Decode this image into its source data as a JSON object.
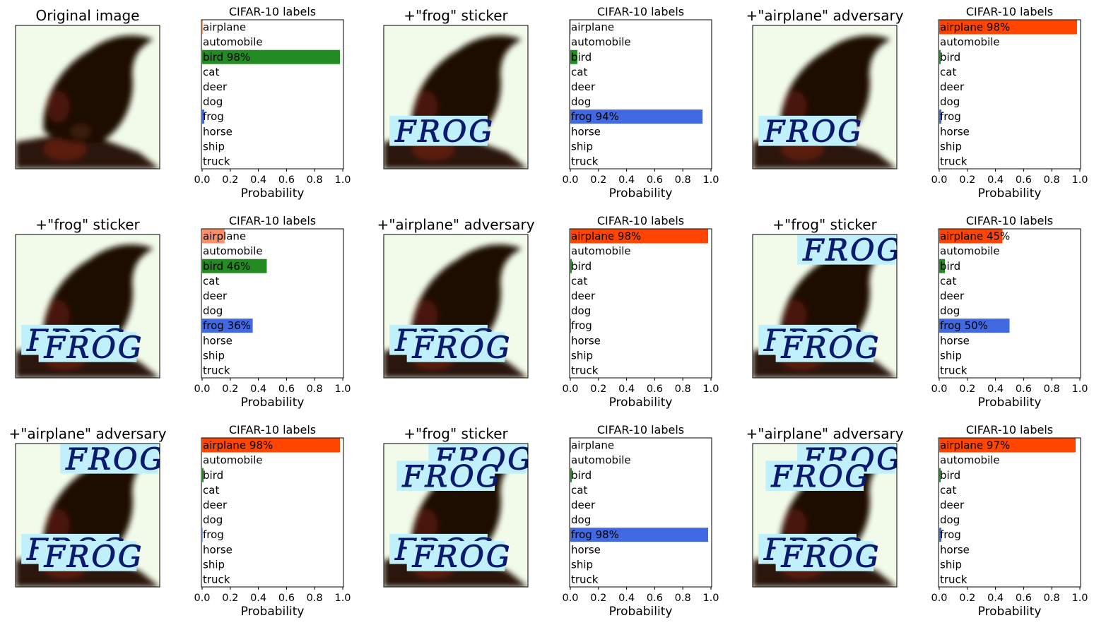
{
  "colors": {
    "bird": "#228b22",
    "frog": "#4169e1",
    "airplane": "#ff4500",
    "photo_bg": "#f2fbe9",
    "bird_dark": "#1a0805",
    "sticker_bg": "#bff0fb",
    "sticker_ink": "#0a1a6e"
  },
  "sticker_text": "FROG",
  "chart_data": [
    {
      "type": "bar",
      "image_title": "Original image",
      "title": "CIFAR-10 labels",
      "xlabel": "Probability",
      "xlim": [
        0,
        1
      ],
      "xticks": [
        "0.0",
        "0.2",
        "0.4",
        "0.6",
        "0.8",
        "1.0"
      ],
      "categories": [
        "truck",
        "ship",
        "horse",
        "frog",
        "dog",
        "deer",
        "cat",
        "bird",
        "automobile",
        "airplane"
      ],
      "values": [
        0.0,
        0.0,
        0.0,
        0.015,
        0.0,
        0.0,
        0.0,
        0.98,
        0.0,
        0.003
      ],
      "bar_labels": [
        "truck",
        "ship",
        "horse",
        "frog",
        "dog",
        "deer",
        "cat",
        "bird 98%",
        "automobile",
        "airplane"
      ],
      "stickers": []
    },
    {
      "type": "bar",
      "image_title": "+\"frog\" sticker",
      "title": "CIFAR-10 labels",
      "xlabel": "Probability",
      "xlim": [
        0,
        1
      ],
      "xticks": [
        "0.0",
        "0.2",
        "0.4",
        "0.6",
        "0.8",
        "1.0"
      ],
      "categories": [
        "truck",
        "ship",
        "horse",
        "frog",
        "dog",
        "deer",
        "cat",
        "bird",
        "automobile",
        "airplane"
      ],
      "values": [
        0.0,
        0.0,
        0.0,
        0.94,
        0.0,
        0.0,
        0.0,
        0.05,
        0.0,
        0.003
      ],
      "bar_labels": [
        "truck",
        "ship",
        "horse",
        "frog 94%",
        "dog",
        "deer",
        "cat",
        "bird",
        "automobile",
        "airplane"
      ],
      "stickers": [
        [
          0.04,
          0.63
        ]
      ]
    },
    {
      "type": "bar",
      "image_title": "+\"airplane\" adversary",
      "title": "CIFAR-10 labels",
      "xlabel": "Probability",
      "xlim": [
        0,
        1
      ],
      "xticks": [
        "0.0",
        "0.2",
        "0.4",
        "0.6",
        "0.8",
        "1.0"
      ],
      "categories": [
        "truck",
        "ship",
        "horse",
        "frog",
        "dog",
        "deer",
        "cat",
        "bird",
        "automobile",
        "airplane"
      ],
      "values": [
        0.0,
        0.0,
        0.0,
        0.015,
        0.0,
        0.0,
        0.0,
        0.01,
        0.0,
        0.98
      ],
      "bar_labels": [
        "truck",
        "ship",
        "horse",
        "frog",
        "dog",
        "deer",
        "cat",
        "bird",
        "automobile",
        "airplane 98%"
      ],
      "stickers": [
        [
          0.04,
          0.63
        ]
      ]
    },
    {
      "type": "bar",
      "image_title": "+\"frog\" sticker",
      "title": "CIFAR-10 labels",
      "xlabel": "Probability",
      "xlim": [
        0,
        1
      ],
      "xticks": [
        "0.0",
        "0.2",
        "0.4",
        "0.6",
        "0.8",
        "1.0"
      ],
      "categories": [
        "truck",
        "ship",
        "horse",
        "frog",
        "dog",
        "deer",
        "cat",
        "bird",
        "automobile",
        "airplane"
      ],
      "values": [
        0.0,
        0.0,
        0.0,
        0.36,
        0.0,
        0.0,
        0.0,
        0.46,
        0.0,
        0.16
      ],
      "bar_labels": [
        "truck",
        "ship",
        "horse",
        "frog 36%",
        "dog",
        "deer",
        "cat",
        "bird 46%",
        "automobile",
        "airplane"
      ],
      "stickers": [
        [
          0.04,
          0.63
        ],
        [
          0.16,
          0.68
        ]
      ]
    },
    {
      "type": "bar",
      "image_title": "+\"airplane\" adversary",
      "title": "CIFAR-10 labels",
      "xlabel": "Probability",
      "xlim": [
        0,
        1
      ],
      "xticks": [
        "0.0",
        "0.2",
        "0.4",
        "0.6",
        "0.8",
        "1.0"
      ],
      "categories": [
        "truck",
        "ship",
        "horse",
        "frog",
        "dog",
        "deer",
        "cat",
        "bird",
        "automobile",
        "airplane"
      ],
      "values": [
        0.0,
        0.0,
        0.0,
        0.005,
        0.0,
        0.0,
        0.0,
        0.01,
        0.0,
        0.98
      ],
      "bar_labels": [
        "truck",
        "ship",
        "horse",
        "frog",
        "dog",
        "deer",
        "cat",
        "bird",
        "automobile",
        "airplane 98%"
      ],
      "stickers": [
        [
          0.04,
          0.63
        ],
        [
          0.16,
          0.68
        ]
      ]
    },
    {
      "type": "bar",
      "image_title": "+\"frog\" sticker",
      "title": "CIFAR-10 labels",
      "xlabel": "Probability",
      "xlim": [
        0,
        1
      ],
      "xticks": [
        "0.0",
        "0.2",
        "0.4",
        "0.6",
        "0.8",
        "1.0"
      ],
      "categories": [
        "truck",
        "ship",
        "horse",
        "frog",
        "dog",
        "deer",
        "cat",
        "bird",
        "automobile",
        "airplane"
      ],
      "values": [
        0.0,
        0.0,
        0.0,
        0.5,
        0.0,
        0.0,
        0.0,
        0.04,
        0.0,
        0.45
      ],
      "bar_labels": [
        "truck",
        "ship",
        "horse",
        "frog 50%",
        "dog",
        "deer",
        "cat",
        "bird",
        "automobile",
        "airplane 45%"
      ],
      "stickers": [
        [
          0.04,
          0.63
        ],
        [
          0.16,
          0.68
        ],
        [
          0.31,
          0.0
        ]
      ]
    },
    {
      "type": "bar",
      "image_title": "+\"airplane\" adversary",
      "title": "CIFAR-10 labels",
      "xlabel": "Probability",
      "xlim": [
        0,
        1
      ],
      "xticks": [
        "0.0",
        "0.2",
        "0.4",
        "0.6",
        "0.8",
        "1.0"
      ],
      "categories": [
        "truck",
        "ship",
        "horse",
        "frog",
        "dog",
        "deer",
        "cat",
        "bird",
        "automobile",
        "airplane"
      ],
      "values": [
        0.0,
        0.0,
        0.0,
        0.003,
        0.0,
        0.0,
        0.0,
        0.01,
        0.0,
        0.98
      ],
      "bar_labels": [
        "truck",
        "ship",
        "horse",
        "frog",
        "dog",
        "deer",
        "cat",
        "bird",
        "automobile",
        "airplane 98%"
      ],
      "stickers": [
        [
          0.04,
          0.63
        ],
        [
          0.16,
          0.68
        ],
        [
          0.31,
          0.0
        ]
      ]
    },
    {
      "type": "bar",
      "image_title": "+\"frog\" sticker",
      "title": "CIFAR-10 labels",
      "xlabel": "Probability",
      "xlim": [
        0,
        1
      ],
      "xticks": [
        "0.0",
        "0.2",
        "0.4",
        "0.6",
        "0.8",
        "1.0"
      ],
      "categories": [
        "truck",
        "ship",
        "horse",
        "frog",
        "dog",
        "deer",
        "cat",
        "bird",
        "automobile",
        "airplane"
      ],
      "values": [
        0.0,
        0.0,
        0.0,
        0.98,
        0.0,
        0.0,
        0.0,
        0.01,
        0.0,
        0.005
      ],
      "bar_labels": [
        "truck",
        "ship",
        "horse",
        "frog 98%",
        "dog",
        "deer",
        "cat",
        "bird",
        "automobile",
        "airplane"
      ],
      "stickers": [
        [
          0.04,
          0.63
        ],
        [
          0.16,
          0.68
        ],
        [
          0.31,
          0.0
        ],
        [
          0.09,
          0.12
        ]
      ]
    },
    {
      "type": "bar",
      "image_title": "+\"airplane\" adversary",
      "title": "CIFAR-10 labels",
      "xlabel": "Probability",
      "xlim": [
        0,
        1
      ],
      "xticks": [
        "0.0",
        "0.2",
        "0.4",
        "0.6",
        "0.8",
        "1.0"
      ],
      "categories": [
        "truck",
        "ship",
        "horse",
        "frog",
        "dog",
        "deer",
        "cat",
        "bird",
        "automobile",
        "airplane"
      ],
      "values": [
        0.0,
        0.0,
        0.0,
        0.015,
        0.0,
        0.0,
        0.0,
        0.01,
        0.0,
        0.97
      ],
      "bar_labels": [
        "truck",
        "ship",
        "horse",
        "frog",
        "dog",
        "deer",
        "cat",
        "bird",
        "automobile",
        "airplane 97%"
      ],
      "stickers": [
        [
          0.04,
          0.63
        ],
        [
          0.16,
          0.68
        ],
        [
          0.31,
          0.0
        ],
        [
          0.09,
          0.12
        ]
      ]
    }
  ]
}
